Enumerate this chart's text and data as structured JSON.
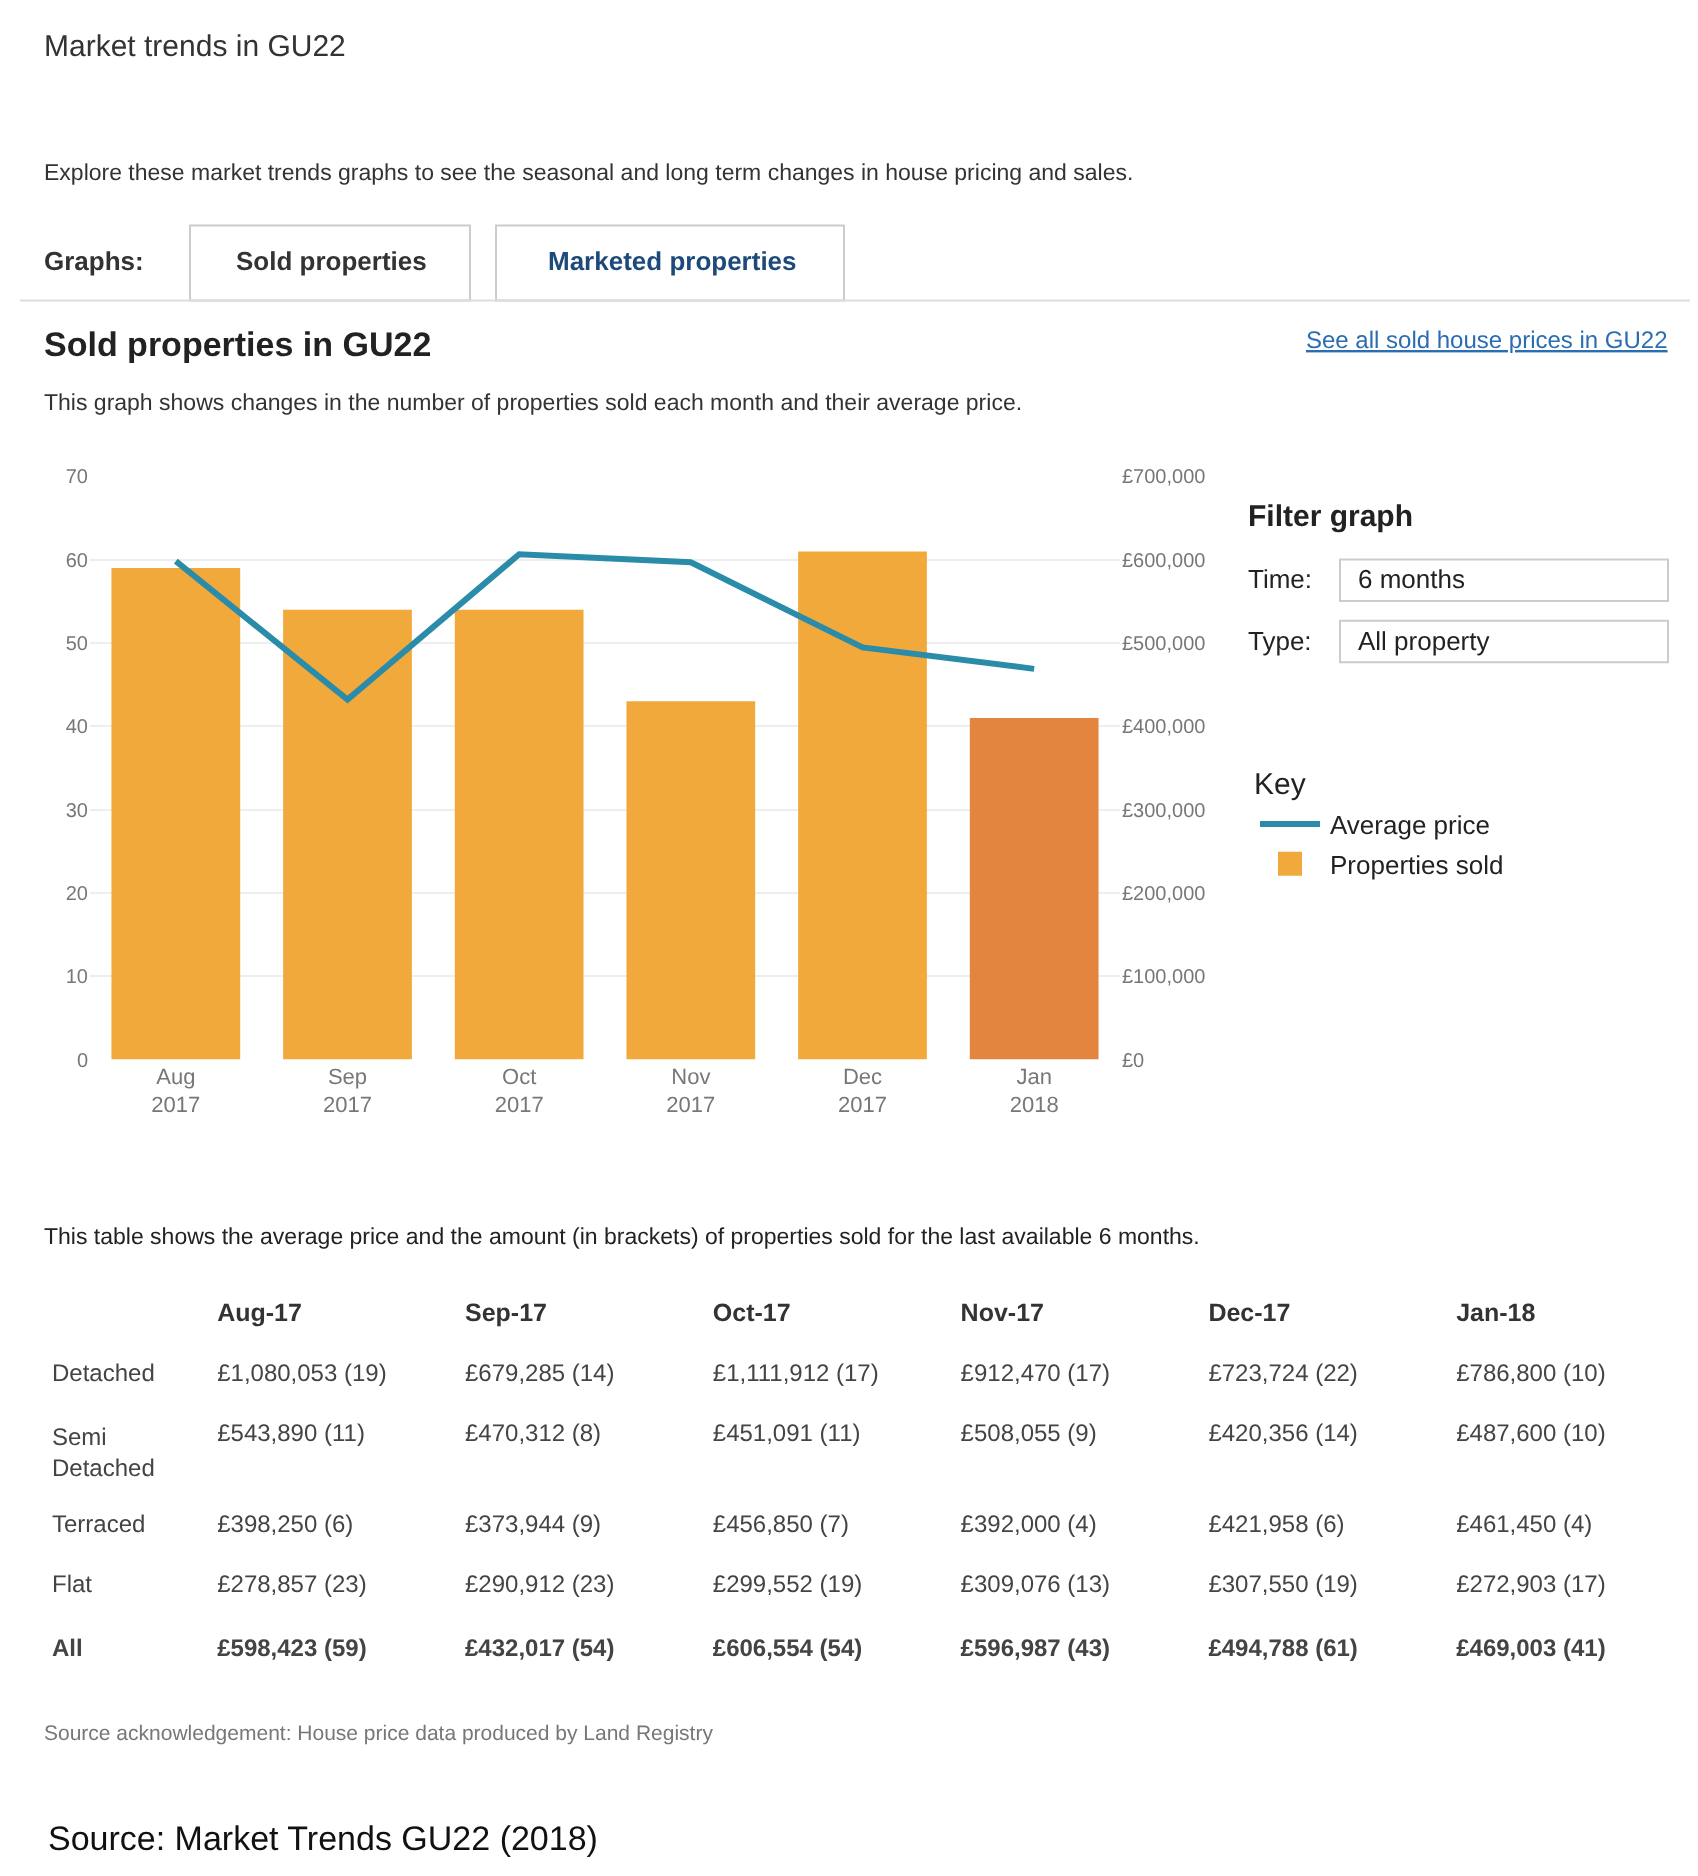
{
  "chart_data": [
    {
      "type": "bar",
      "title": "Sold properties in GU22",
      "subtitle": "This graph shows changes in the number of properties sold each month and their average price.",
      "categories": [
        "Aug\n2017",
        "Sep\n2017",
        "Oct\n2017",
        "Nov\n2017",
        "Dec\n2017",
        "Jan\n2018"
      ],
      "series": [
        {
          "name": "Average price",
          "type": "line",
          "axis": "y2",
          "color": "#2a8ca8",
          "values": [
            598423,
            432017,
            606554,
            596987,
            494788,
            469003
          ]
        },
        {
          "name": "Properties sold",
          "type": "bar",
          "color": "#f2a93b",
          "colors": [
            "#f2a93b",
            "#f2a93b",
            "#f2a93b",
            "#f2a93b",
            "#f2a93b",
            "#e3843f"
          ],
          "values": [
            59,
            54,
            54,
            43,
            61,
            41
          ]
        }
      ],
      "ylim": [
        0,
        70
      ],
      "yticks": [
        0,
        10,
        20,
        30,
        40,
        50,
        60,
        70
      ],
      "y2lim": [
        0,
        700000
      ],
      "y2ticks": [
        {
          "value": 0,
          "label": "£0"
        },
        {
          "value": 100000,
          "label": "£100,000"
        },
        {
          "value": 200000,
          "label": "£200,000"
        },
        {
          "value": 300000,
          "label": "£300,000"
        },
        {
          "value": 400000,
          "label": "£400,000"
        },
        {
          "value": 500000,
          "label": "£500,000"
        },
        {
          "value": 600000,
          "label": "£600,000"
        },
        {
          "value": 700000,
          "label": "£700,000"
        }
      ],
      "grid": "y",
      "legend": "right",
      "legend_title": "Key",
      "marker": "none",
      "line_style": "solid",
      "annotations": [
        "Market trends in GU22",
        "Explore these market trends graphs to see the seasonal and long term changes in house pricing and sales.",
        "Graphs:",
        "Sold properties",
        "Marketed properties",
        "See all sold house prices in GU22",
        "Filter graph",
        "Time:",
        "6 months",
        "Type:",
        "All property"
      ]
    },
    {
      "type": "other",
      "title": "This table shows the average price and the amount (in brackets) of properties sold for the last available 6 months.",
      "categories": [
        null,
        "Aug-17",
        "Sep-17",
        "Oct-17",
        "Nov-17",
        "Dec-17",
        "Jan-18"
      ],
      "y_categories": [
        "Detached",
        "Semi Detached",
        "Terraced",
        "Flat",
        "All"
      ],
      "cell_labels": [
        [
          "£1,080,053 (19)",
          "£679,285 (14)",
          "£1,111,912 (17)",
          "£912,470 (17)",
          "£723,724 (22)",
          "£786,800 (10)"
        ],
        [
          "£543,890 (11)",
          "£470,312 (8)",
          "£451,091 (11)",
          "£508,055 (9)",
          "£420,356 (14)",
          "£487,600 (10)"
        ],
        [
          "£398,250 (6)",
          "£373,944 (9)",
          "£456,850 (7)",
          "£392,000 (4)",
          "£421,958 (6)",
          "£461,450 (4)"
        ],
        [
          "£278,857 (23)",
          "£290,912 (23)",
          "£299,552 (19)",
          "£309,076 (13)",
          "£307,550 (19)",
          "£272,903 (17)"
        ],
        [
          "£598,423 (59)",
          "£432,017 (54)",
          "£606,554 (54)",
          "£596,987 (43)",
          "£494,788 (61)",
          "£469,003 (41)"
        ]
      ],
      "annotations": [
        "Source acknowledgement: House price data produced by Land Registry",
        "Source: Market Trends GU22 (2018)"
      ]
    }
  ]
}
